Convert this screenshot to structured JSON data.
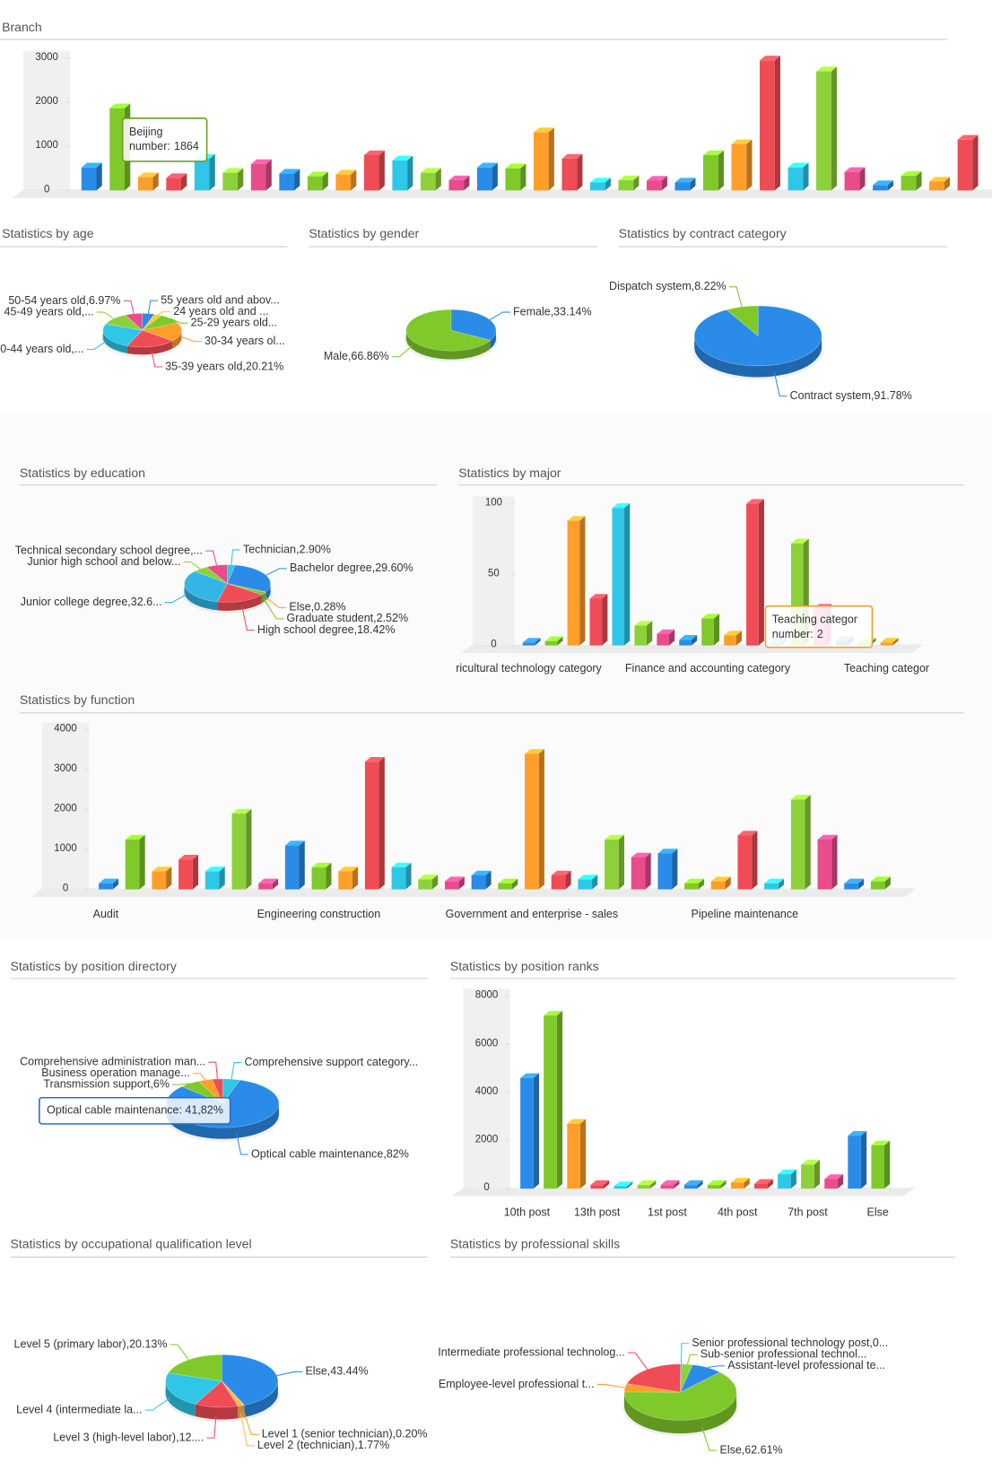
{
  "chart_data": [
    {
      "type": "bar",
      "title": "Branch",
      "categories": [
        null,
        "Beijing",
        null,
        null,
        null,
        null,
        null,
        null,
        null,
        null,
        null,
        null,
        null,
        null,
        null,
        null,
        null,
        null,
        null,
        null,
        null,
        null,
        null,
        null,
        null,
        null,
        null,
        null,
        null,
        null,
        null,
        null
      ],
      "values": [
        520,
        1864,
        300,
        280,
        720,
        400,
        600,
        380,
        320,
        360,
        800,
        680,
        400,
        230,
        520,
        500,
        1320,
        720,
        180,
        230,
        220,
        180,
        800,
        1050,
        2950,
        520,
        2700,
        420,
        120,
        330,
        200,
        1150
      ],
      "colors": [
        "#2b8be8",
        "#7fc92a",
        "#ff9e2a",
        "#f04c55",
        "#2ec7e8",
        "#8dd13a",
        "#e84c8b"
      ],
      "ylim": [
        0,
        3000
      ],
      "yticks": [
        0,
        1000,
        2000,
        3000
      ],
      "tooltip_label": "number:"
    },
    {
      "type": "pie",
      "title": "Statistics by age",
      "values": [
        5,
        3,
        10,
        18,
        20.21,
        24.82,
        12,
        6.97
      ],
      "value_labels": [
        "55 years old and abov...",
        "24 years old and ...",
        "25-29 years old...",
        "30-34 years ol...",
        "35-39 years old,20.21%",
        "40-44 years old,...",
        "45-49 years old,...",
        "50-54 years old,6.97%"
      ],
      "colors": [
        "#2b8be8",
        "#ffcc33",
        "#7fc92a",
        "#ff9e2a",
        "#f04c55",
        "#2ec7e8",
        "#8dd13a",
        "#e84c8b"
      ]
    },
    {
      "type": "pie",
      "title": "Statistics by gender",
      "values": [
        33.14,
        66.86
      ],
      "value_labels": [
        "Female,33.14%",
        "Male,66.86%"
      ],
      "colors": [
        "#2b8be8",
        "#7fc92a"
      ]
    },
    {
      "type": "pie",
      "title": "Statistics by contract category",
      "values": [
        91.78,
        8.22
      ],
      "value_labels": [
        "Contract system,91.78%",
        "Dispatch system,8.22%"
      ],
      "colors": [
        "#2b8be8",
        "#7fc92a"
      ]
    },
    {
      "type": "pie",
      "title": "Statistics by education",
      "values": [
        2.9,
        29.6,
        0.28,
        2.52,
        18.42,
        32.6,
        5.68,
        8
      ],
      "value_labels": [
        "Technician,2.90%",
        "Bachelor degree,29.60%",
        "Else,0.28%",
        "Graduate student,2.52%",
        "High school degree,18.42%",
        "Junior college degree,32.6...",
        "Junior high school and below...",
        "Technical secondary school degree,..."
      ],
      "colors": [
        "#2ec7e8",
        "#2b8be8",
        "#ff9e2a",
        "#7fc92a",
        "#f04c55",
        "#33b5e5",
        "#8dd13a",
        "#e84c8b"
      ]
    },
    {
      "type": "bar",
      "title": "Statistics by major",
      "categories": [
        "ricultural technology category",
        null,
        null,
        null,
        null,
        null,
        null,
        null,
        "Finance and accounting category",
        null,
        null,
        null,
        null,
        null,
        null,
        null,
        "Teaching categor"
      ],
      "values": [
        2,
        3,
        88,
        33,
        97,
        14,
        8,
        4,
        19,
        7,
        100,
        2,
        72,
        26,
        3,
        2,
        2
      ],
      "colors": [
        "#2b8be8",
        "#7fc92a",
        "#ff9e2a",
        "#f04c55",
        "#2ec7e8",
        "#8dd13a",
        "#e84c8b"
      ],
      "ylim": [
        0,
        100
      ],
      "yticks": [
        0,
        50,
        100
      ],
      "tooltip_label": "number:"
    },
    {
      "type": "bar",
      "title": "Statistics by function",
      "categories": [
        "Audit",
        null,
        null,
        null,
        null,
        null,
        null,
        null,
        "Engineering construction",
        null,
        null,
        null,
        null,
        null,
        null,
        null,
        "Government and enterprise - sales",
        null,
        null,
        null,
        null,
        null,
        null,
        null,
        "Pipeline maintenance",
        null,
        null,
        null,
        null,
        null
      ],
      "values": [
        150,
        1250,
        450,
        750,
        450,
        1900,
        150,
        1100,
        550,
        450,
        3200,
        550,
        250,
        200,
        350,
        150,
        3400,
        350,
        250,
        1250,
        800,
        900,
        150,
        200,
        1350,
        150,
        2250,
        1250,
        150,
        200
      ],
      "colors": [
        "#2b8be8",
        "#7fc92a",
        "#ff9e2a",
        "#f04c55",
        "#2ec7e8",
        "#8dd13a",
        "#e84c8b"
      ],
      "ylim": [
        0,
        4000
      ],
      "yticks": [
        0,
        1000,
        2000,
        3000,
        4000
      ]
    },
    {
      "type": "pie",
      "title": "Statistics by position directory",
      "values": [
        5,
        82,
        6,
        4,
        3
      ],
      "value_labels": [
        "Comprehensive support category...",
        "Optical cable maintenance,82%",
        "Transmission support,6%",
        "Business operation manage...",
        "Comprehensive administration man..."
      ],
      "colors": [
        "#2ec7e8",
        "#2b8be8",
        "#7fc92a",
        "#ff9e2a",
        "#f04c55"
      ],
      "tooltip": "Optical cable maintenance: 41,82%"
    },
    {
      "type": "bar",
      "title": "Statistics by position ranks",
      "categories": [
        "10th post",
        null,
        null,
        "13th post",
        null,
        null,
        "1st post",
        null,
        null,
        "4th post",
        null,
        null,
        "7th post",
        null,
        null,
        "Else"
      ],
      "values": [
        4600,
        7200,
        2700,
        150,
        100,
        150,
        150,
        150,
        150,
        250,
        200,
        600,
        1000,
        400,
        2200,
        1800
      ],
      "colors": [
        "#2b8be8",
        "#7fc92a",
        "#ff9e2a",
        "#f04c55",
        "#2ec7e8",
        "#8dd13a",
        "#e84c8b"
      ],
      "ylim": [
        0,
        8000
      ],
      "yticks": [
        0,
        2000,
        4000,
        6000,
        8000
      ]
    },
    {
      "type": "pie",
      "title": "Statistics by occupational qualification level",
      "values": [
        43.44,
        0.2,
        1.77,
        12.4,
        22.06,
        20.13
      ],
      "value_labels": [
        "Else,43.44%",
        "Level 1 (senior technician),0.20%",
        "Level 2 (technician),1.77%",
        "Level 3 (high-level labor),12....",
        "Level 4 (intermediate la...",
        "Level 5 (primary labor),20.13%"
      ],
      "colors": [
        "#2b8be8",
        "#ff9e2a",
        "#ffb84d",
        "#f04c55",
        "#2ec7e8",
        "#7fc92a"
      ]
    },
    {
      "type": "pie",
      "title": "Statistics by professional skills",
      "values": [
        0.5,
        3,
        9,
        62.61,
        4.89,
        20
      ],
      "value_labels": [
        "Senior professional technology post,0...",
        "Sub-senior professional technol...",
        "Assistant-level professional te...",
        "Else,62.61%",
        "Employee-level professional t...",
        "Intermediate professional technolog..."
      ],
      "colors": [
        "#2ec7e8",
        "#8dd13a",
        "#2b8be8",
        "#7fc92a",
        "#ff9e2a",
        "#f04c55"
      ]
    }
  ]
}
